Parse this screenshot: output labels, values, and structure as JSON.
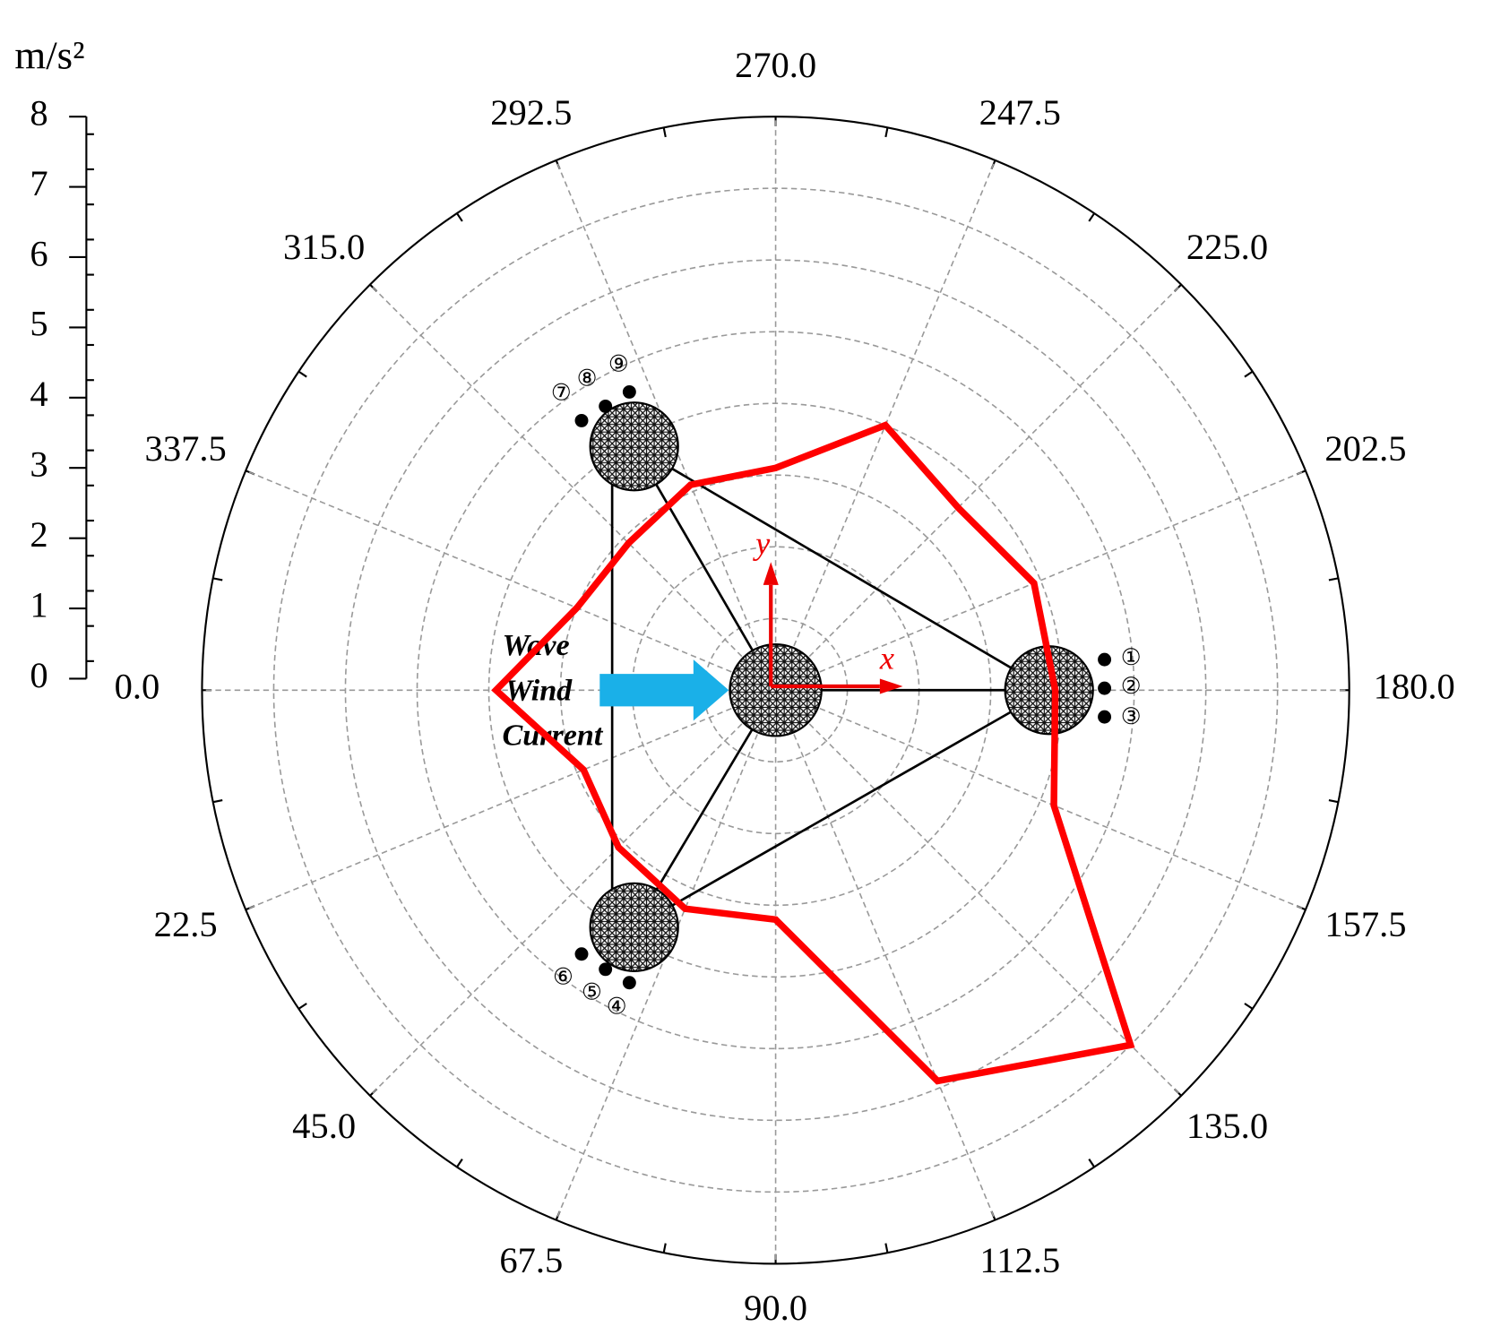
{
  "chart_data": {
    "type": "polar",
    "r_label": "m/s²",
    "rlim": [
      0,
      8
    ],
    "rticks": [
      0,
      1,
      2,
      3,
      4,
      5,
      6,
      7,
      8
    ],
    "grid": true,
    "theta_ticks": [
      {
        "value": 0,
        "label": "0.0"
      },
      {
        "value": 22.5,
        "label": "22.5"
      },
      {
        "value": 45,
        "label": "45.0"
      },
      {
        "value": 67.5,
        "label": "67.5"
      },
      {
        "value": 90,
        "label": "90.0"
      },
      {
        "value": 112.5,
        "label": "112.5"
      },
      {
        "value": 135,
        "label": "135.0"
      },
      {
        "value": 157.5,
        "label": "157.5"
      },
      {
        "value": 180,
        "label": "180.0"
      },
      {
        "value": 202.5,
        "label": "202.5"
      },
      {
        "value": 225,
        "label": "225.0"
      },
      {
        "value": 247.5,
        "label": "247.5"
      },
      {
        "value": 270,
        "label": "270.0"
      },
      {
        "value": 292.5,
        "label": "292.5"
      },
      {
        "value": 315,
        "label": "315.0"
      },
      {
        "value": 337.5,
        "label": "337.5"
      }
    ],
    "theta": [
      0,
      22.5,
      45,
      67.5,
      90,
      112.5,
      135,
      157.5,
      180,
      202.5,
      225,
      247.5,
      270,
      292.5,
      315,
      337.5
    ],
    "series": [
      {
        "color": "#ff0000",
        "values": [
          3.9,
          2.9,
          3.1,
          3.3,
          3.2,
          5.9,
          7.0,
          4.2,
          3.9,
          3.9,
          3.6,
          4.0,
          3.1,
          3.1,
          2.9,
          3.0
        ]
      }
    ],
    "annotations": [
      "Wave",
      "Wind",
      "Current",
      "x",
      "y",
      "①",
      "②",
      "③",
      "④",
      "⑤",
      "⑥",
      "⑦",
      "⑧",
      "⑨"
    ]
  }
}
